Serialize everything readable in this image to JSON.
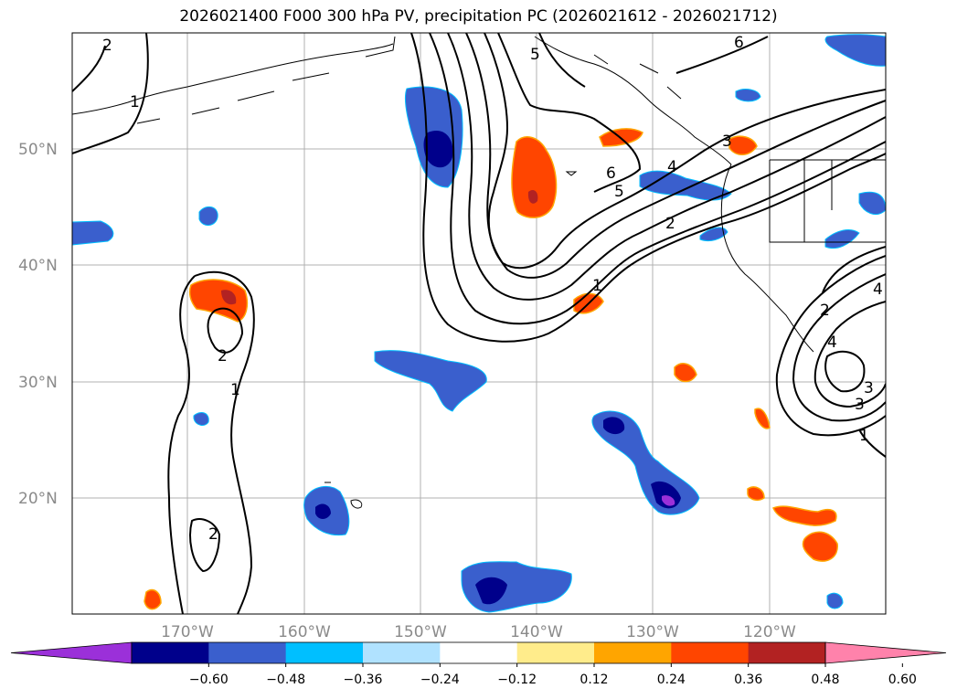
{
  "title": "2026021400 F000 300 hPa PV, precipitation PC (2026021612 - 2026021712)",
  "lat_labels": [
    "50°N",
    "40°N",
    "30°N",
    "20°N"
  ],
  "lon_labels": [
    "170°W",
    "160°W",
    "150°W",
    "140°W",
    "130°W",
    "120°W"
  ],
  "colorbar": {
    "ticks": [
      "−0.60",
      "−0.48",
      "−0.36",
      "−0.24",
      "−0.12",
      "0.12",
      "0.24",
      "0.36",
      "0.48",
      "0.60"
    ],
    "colors": [
      "#9b30d9",
      "#00008b",
      "#3a5fcd",
      "#00bfff",
      "#b0e2ff",
      "#ffffff",
      "#ffec8b",
      "#ffa500",
      "#ff4500",
      "#b22222",
      "#ff82ab"
    ]
  },
  "contour_labels": [
    "2",
    "1",
    "5",
    "6",
    "6",
    "5",
    "4",
    "3",
    "2",
    "1",
    "2",
    "2",
    "1",
    "2",
    "4",
    "3",
    "3",
    "1",
    "4"
  ],
  "colors": {
    "grid": "#b0b0b0",
    "contour": "#000000",
    "tick_label": "#8a8a8a"
  }
}
